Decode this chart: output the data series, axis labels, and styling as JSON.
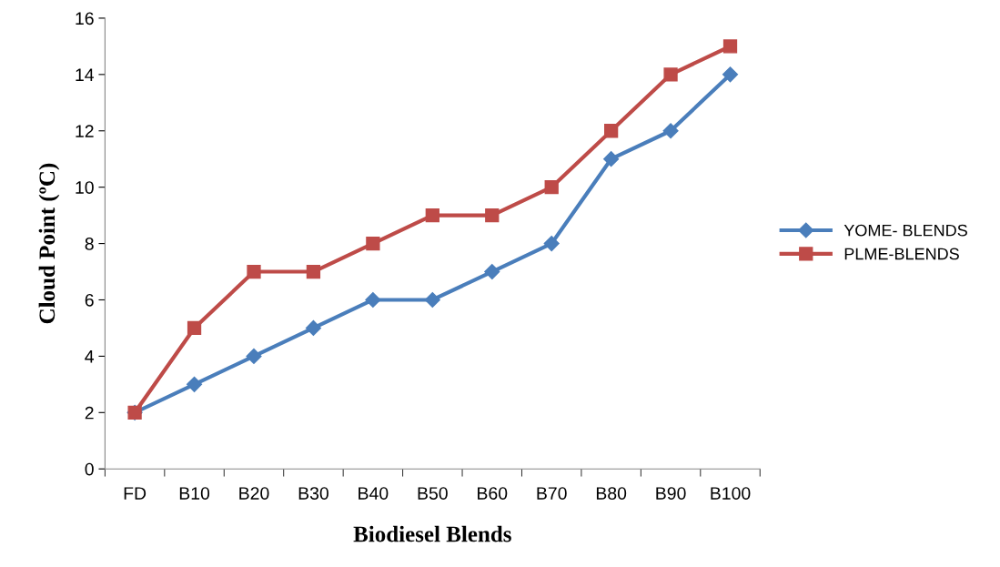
{
  "chart_data": {
    "type": "line",
    "xlabel": "Biodiesel Blends",
    "ylabel": "Cloud Point (ºC)",
    "categories": [
      "FD",
      "B10",
      "B20",
      "B30",
      "B40",
      "B50",
      "B60",
      "B70",
      "B80",
      "B90",
      "B100"
    ],
    "series": [
      {
        "name": "YOME- BLENDS",
        "color": "#4a7ebb",
        "marker": "diamond",
        "values": [
          2,
          3,
          4,
          5,
          6,
          6,
          7,
          8,
          11,
          12,
          14
        ]
      },
      {
        "name": "PLME-BLENDS",
        "color": "#be4b48",
        "marker": "square",
        "values": [
          2,
          5,
          7,
          7,
          8,
          9,
          9,
          10,
          12,
          14,
          15
        ]
      }
    ],
    "ylim": [
      0,
      16
    ],
    "yticks": [
      0,
      2,
      4,
      6,
      8,
      10,
      12,
      14,
      16
    ],
    "grid": false,
    "legend": "right",
    "line_style": "solid"
  }
}
